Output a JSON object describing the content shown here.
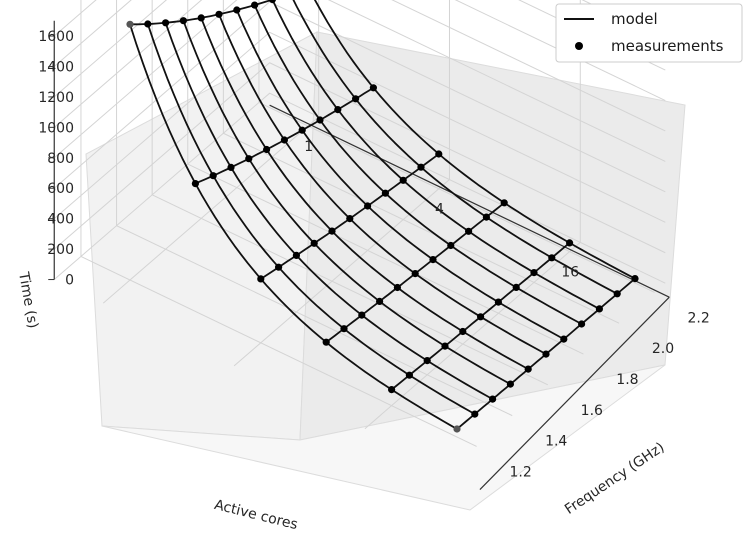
{
  "chart_data": {
    "type": "surface-3d",
    "title": "",
    "xlabel": "Active cores",
    "ylabel": "Frequency (GHz)",
    "zlabel": "Time (s)",
    "x_ticks": [
      "1",
      "4",
      "16"
    ],
    "y_ticks": [
      "1.2",
      "1.4",
      "1.6",
      "1.8",
      "2.0",
      "2.2"
    ],
    "z_ticks": [
      "0",
      "200",
      "400",
      "600",
      "800",
      "1000",
      "1200",
      "1400",
      "1600"
    ],
    "zlim": [
      0,
      1700
    ],
    "log2_cores": [
      0,
      1,
      2,
      3,
      4,
      5
    ],
    "frequencies": [
      1.2,
      1.3,
      1.4,
      1.5,
      1.6,
      1.7,
      1.8,
      1.9,
      2.0,
      2.1,
      2.2
    ],
    "model_surface": {
      "t_cores1_freq1_2": 1680,
      "t_cores1_freq2_2": 915,
      "decay_per_core_doubling": 0.5
    },
    "legend": {
      "position": "top-right",
      "entries": [
        "model",
        "measurements"
      ]
    },
    "grid": true,
    "colors": {
      "line": "#111111",
      "marker": "#000000",
      "pane": "#f2f2f2",
      "grid": "#d4d4d4"
    }
  }
}
